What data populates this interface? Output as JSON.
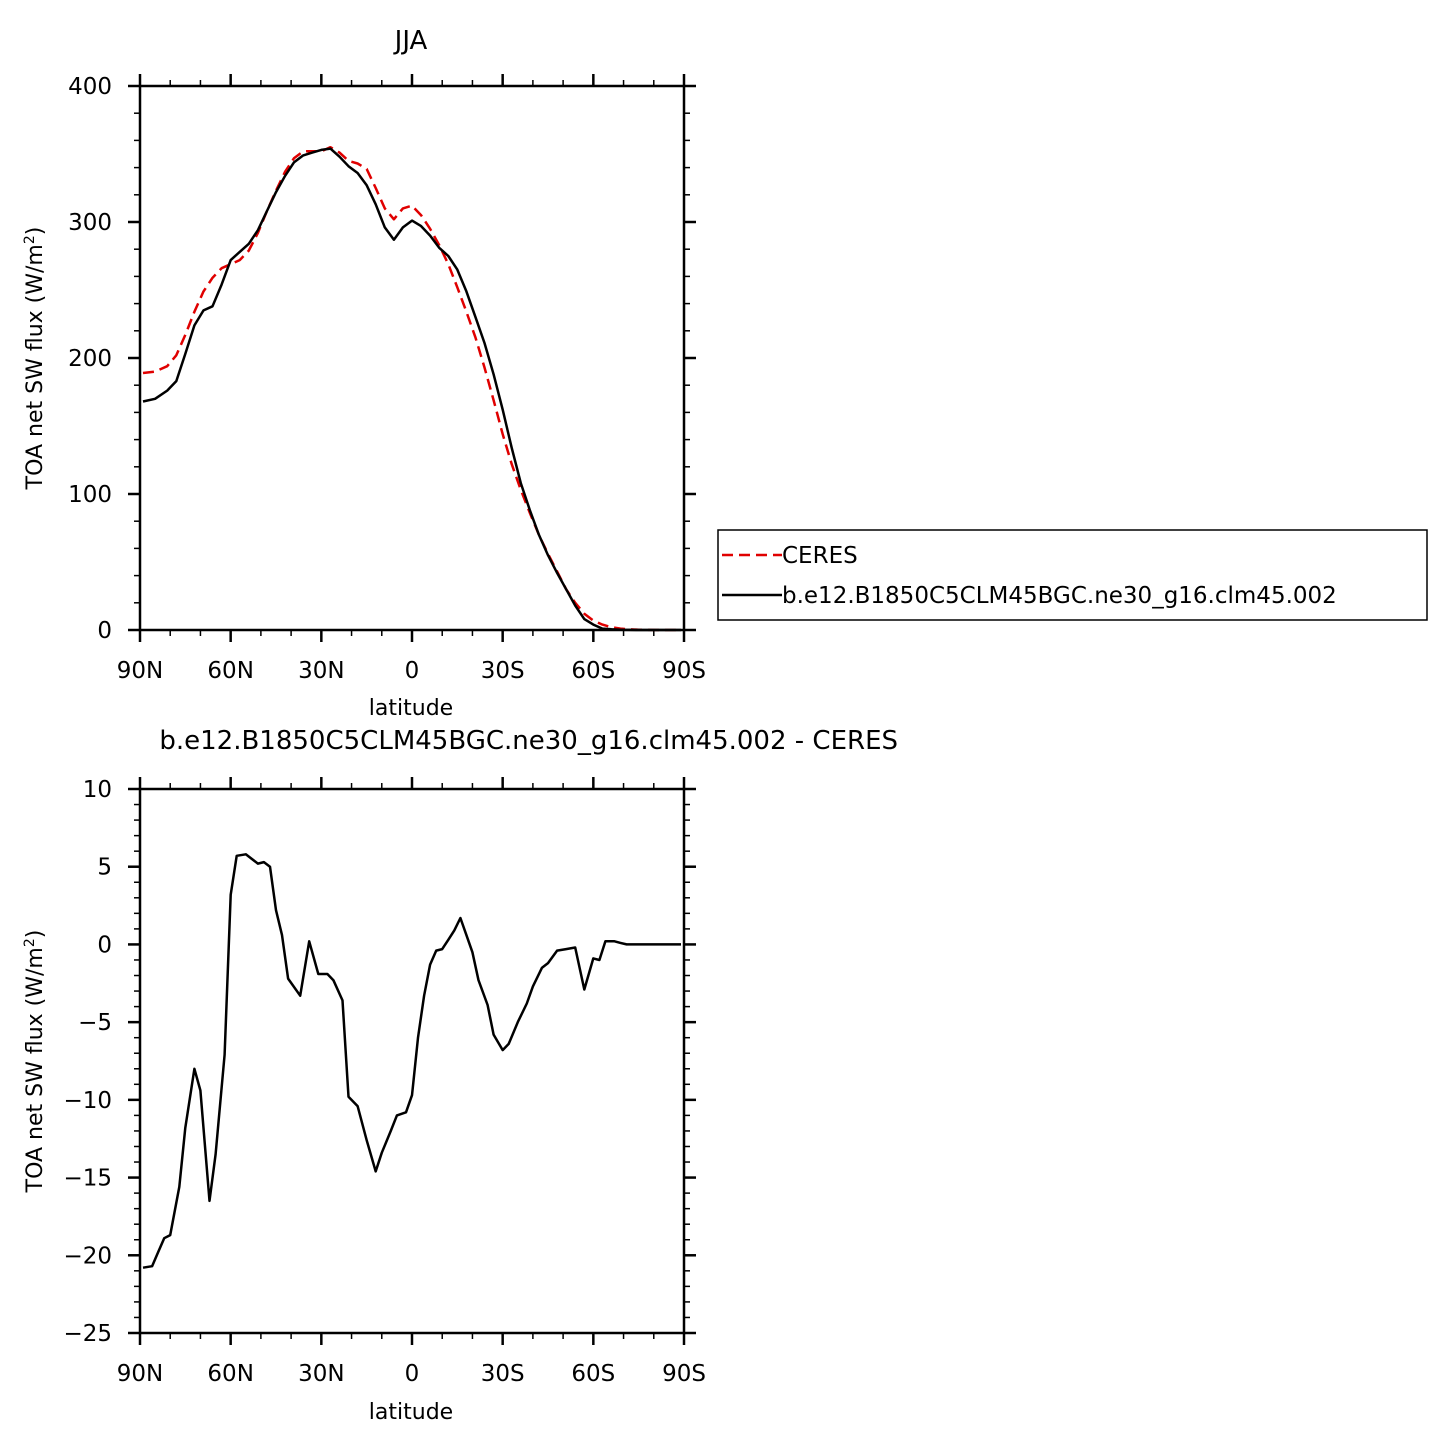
{
  "chart_data": [
    {
      "type": "line",
      "title": "JJA",
      "xlabel": "latitude",
      "ylabel": "TOA net SW flux (W/m²)",
      "ylabel_parts": [
        "TOA net SW flux (W/m",
        "2",
        ")"
      ],
      "xlim": [
        90,
        -90
      ],
      "ylim": [
        0,
        400
      ],
      "xticks": [
        90,
        60,
        30,
        0,
        -30,
        -60,
        -90
      ],
      "xtick_labels": [
        "90N",
        "60N",
        "30N",
        "0",
        "30S",
        "60S",
        "90S"
      ],
      "yticks": [
        0,
        100,
        200,
        300,
        400
      ],
      "ytick_labels": [
        "0",
        "100",
        "200",
        "300",
        "400"
      ],
      "grid": false,
      "legend": "right-outside",
      "series": [
        {
          "name": "CERES",
          "color": "#e00000",
          "dash": "dashed",
          "x": [
            89,
            85,
            81,
            78,
            75,
            72,
            69,
            66,
            63,
            60,
            57,
            54,
            51,
            48,
            45,
            42,
            39,
            36,
            33,
            30,
            27,
            24,
            21,
            18,
            15,
            12,
            9,
            6,
            3,
            0,
            -3,
            -6,
            -9,
            -12,
            -15,
            -18,
            -21,
            -24,
            -27,
            -30,
            -33,
            -36,
            -39,
            -42,
            -45,
            -48,
            -51,
            -54,
            -57,
            -60,
            -63,
            -66,
            -69,
            -72,
            -75,
            -78,
            -81,
            -84,
            -87,
            -89
          ],
          "y": [
            189,
            190,
            194,
            202,
            217,
            234,
            249,
            259,
            266,
            269,
            272,
            279,
            292,
            308,
            323,
            337,
            347,
            352,
            352,
            352,
            355,
            351,
            345,
            343,
            339,
            325,
            310,
            302,
            310,
            312,
            305,
            295,
            283,
            269,
            252,
            234,
            215,
            193,
            169,
            144,
            122,
            103,
            86,
            70,
            56,
            43,
            30,
            20,
            12,
            7,
            4,
            2,
            1,
            0.5,
            0.2,
            0.1,
            0,
            0,
            0,
            0
          ]
        },
        {
          "name": "b.e12.B1850C5CLM45BGC.ne30_g16.clm45.002",
          "color": "#000000",
          "dash": "solid",
          "x": [
            89,
            85,
            81,
            78,
            75,
            72,
            69,
            66,
            63,
            60,
            57,
            54,
            51,
            48,
            45,
            42,
            39,
            36,
            33,
            30,
            27,
            24,
            21,
            18,
            15,
            12,
            9,
            6,
            3,
            0,
            -3,
            -6,
            -9,
            -12,
            -15,
            -18,
            -21,
            -24,
            -27,
            -30,
            -33,
            -36,
            -39,
            -42,
            -45,
            -48,
            -51,
            -54,
            -57,
            -60,
            -63,
            -66,
            -69,
            -72,
            -75,
            -78,
            -81,
            -84,
            -87,
            -89
          ],
          "y": [
            168,
            170,
            176,
            183,
            203,
            224,
            235,
            238,
            254,
            272,
            278,
            284,
            294,
            308,
            322,
            334,
            344,
            349,
            351,
            353,
            354,
            348,
            341,
            336,
            327,
            313,
            296,
            287,
            296,
            301,
            297,
            290,
            281,
            275,
            265,
            249,
            230,
            211,
            188,
            162,
            134,
            108,
            88,
            70,
            55,
            42,
            30,
            18,
            8,
            4,
            1,
            0.5,
            0.2,
            0.1,
            0,
            0,
            0,
            0,
            0,
            0
          ]
        }
      ]
    },
    {
      "type": "line",
      "title": "b.e12.B1850C5CLM45BGC.ne30_g16.clm45.002 - CERES",
      "xlabel": "latitude",
      "ylabel": "TOA net SW flux (W/m²)",
      "ylabel_parts": [
        "TOA net SW flux (W/m",
        "2",
        ")"
      ],
      "xlim": [
        90,
        -90
      ],
      "ylim": [
        -25,
        10
      ],
      "xticks": [
        90,
        60,
        30,
        0,
        -30,
        -60,
        -90
      ],
      "xtick_labels": [
        "90N",
        "60N",
        "30N",
        "0",
        "30S",
        "60S",
        "90S"
      ],
      "yticks": [
        10,
        5,
        0,
        -5,
        -10,
        -15,
        -20,
        -25
      ],
      "ytick_labels": [
        "10",
        "5",
        "0",
        "−5",
        "−10",
        "−15",
        "−20",
        "−25"
      ],
      "grid": false,
      "series": [
        {
          "color": "#000000",
          "dash": "solid",
          "x": [
            89,
            86,
            84,
            82,
            80,
            77,
            75,
            72,
            70,
            67,
            65,
            62,
            60,
            58,
            55,
            51,
            49,
            47,
            45,
            43,
            41,
            37,
            34,
            31,
            28,
            26,
            23,
            21,
            18,
            15,
            12,
            10,
            7,
            5,
            2,
            0,
            -2,
            -4,
            -6,
            -8,
            -10,
            -12,
            -14,
            -16,
            -18,
            -20,
            -22,
            -25,
            -27,
            -30,
            -32,
            -35,
            -38,
            -40,
            -43,
            -45,
            -48,
            -51,
            -54,
            -57,
            -60,
            -62,
            -64,
            -67,
            -69,
            -71,
            -73,
            -75,
            -78,
            -81,
            -84,
            -89
          ],
          "y": [
            -20.8,
            -20.7,
            -19.8,
            -18.9,
            -18.7,
            -15.6,
            -11.8,
            -8.0,
            -9.4,
            -16.5,
            -13.5,
            -7.1,
            3.2,
            5.7,
            5.8,
            5.2,
            5.3,
            5.0,
            2.2,
            0.6,
            -2.2,
            -3.3,
            0.2,
            -1.9,
            -1.9,
            -2.3,
            -3.6,
            -9.8,
            -10.4,
            -12.6,
            -14.6,
            -13.4,
            -12.0,
            -11.0,
            -10.8,
            -9.7,
            -6.0,
            -3.3,
            -1.3,
            -0.4,
            -0.3,
            0.3,
            0.9,
            1.7,
            0.6,
            -0.5,
            -2.3,
            -3.9,
            -5.8,
            -6.8,
            -6.4,
            -5.0,
            -3.8,
            -2.7,
            -1.5,
            -1.2,
            -0.4,
            -0.3,
            -0.2,
            -2.9,
            -0.9,
            -1.0,
            0.2,
            0.2,
            0.1,
            0.0,
            0.0,
            0.0,
            0.0,
            0.0,
            0.0,
            0.0
          ]
        }
      ]
    }
  ]
}
